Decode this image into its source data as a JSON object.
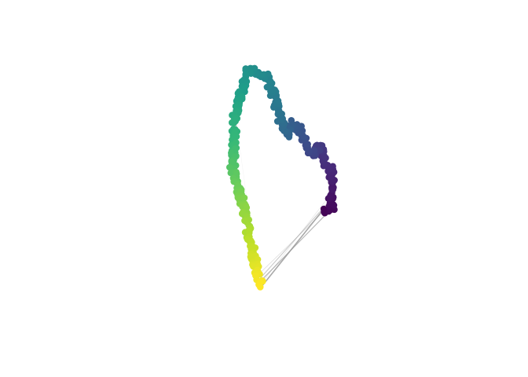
{
  "chart_data": {
    "type": "scatter",
    "title": "",
    "xlabel": "",
    "ylabel": "",
    "axes_visible": false,
    "grid": false,
    "legend": "none",
    "colormap": "viridis",
    "colormap_stops": [
      "#440154",
      "#482878",
      "#3e4989",
      "#31688e",
      "#26828e",
      "#1f9e89",
      "#35b779",
      "#6ece58",
      "#b5de2b",
      "#fde725"
    ],
    "edge_color": "#999999",
    "xlim": [
      0,
      1
    ],
    "ylim": [
      0,
      1
    ],
    "path_waypoints": [
      {
        "x": 0.69,
        "y": 0.63
      },
      {
        "x": 0.73,
        "y": 0.622
      },
      {
        "x": 0.72,
        "y": 0.56
      },
      {
        "x": 0.735,
        "y": 0.525
      },
      {
        "x": 0.725,
        "y": 0.44
      },
      {
        "x": 0.7,
        "y": 0.415
      },
      {
        "x": 0.69,
        "y": 0.36
      },
      {
        "x": 0.67,
        "y": 0.34
      },
      {
        "x": 0.655,
        "y": 0.39
      },
      {
        "x": 0.615,
        "y": 0.33
      },
      {
        "x": 0.575,
        "y": 0.25
      },
      {
        "x": 0.55,
        "y": 0.24
      },
      {
        "x": 0.535,
        "y": 0.295
      },
      {
        "x": 0.505,
        "y": 0.215
      },
      {
        "x": 0.475,
        "y": 0.11
      },
      {
        "x": 0.45,
        "y": 0.035
      },
      {
        "x": 0.415,
        "y": 0.02
      },
      {
        "x": 0.395,
        "y": 0.01
      },
      {
        "x": 0.365,
        "y": 0.005
      },
      {
        "x": 0.345,
        "y": 0.07
      },
      {
        "x": 0.33,
        "y": 0.13
      },
      {
        "x": 0.315,
        "y": 0.175
      },
      {
        "x": 0.31,
        "y": 0.22
      },
      {
        "x": 0.305,
        "y": 0.34
      },
      {
        "x": 0.3,
        "y": 0.45
      },
      {
        "x": 0.305,
        "y": 0.49
      },
      {
        "x": 0.32,
        "y": 0.52
      },
      {
        "x": 0.33,
        "y": 0.56
      },
      {
        "x": 0.345,
        "y": 0.61
      },
      {
        "x": 0.355,
        "y": 0.67
      },
      {
        "x": 0.368,
        "y": 0.73
      },
      {
        "x": 0.385,
        "y": 0.8
      },
      {
        "x": 0.395,
        "y": 0.85
      },
      {
        "x": 0.41,
        "y": 0.93
      },
      {
        "x": 0.43,
        "y": 0.965
      }
    ],
    "n_points": 400,
    "shortcut_edges": [
      {
        "from": 0.0,
        "to": 1.0,
        "width": 1.6,
        "opacity": 0.85
      },
      {
        "from": 0.02,
        "to": 0.99,
        "width": 1.2,
        "opacity": 0.7
      },
      {
        "from": 0.04,
        "to": 0.985,
        "width": 1.0,
        "opacity": 0.55
      },
      {
        "from": 0.03,
        "to": 0.975,
        "width": 0.8,
        "opacity": 0.35
      },
      {
        "from": 0.05,
        "to": 0.995,
        "width": 0.7,
        "opacity": 0.25
      },
      {
        "from": 0.58,
        "to": 0.7,
        "width": 1.0,
        "opacity": 0.6
      },
      {
        "from": 0.6,
        "to": 0.72,
        "width": 0.9,
        "opacity": 0.5
      },
      {
        "from": 0.56,
        "to": 0.66,
        "width": 0.8,
        "opacity": 0.5
      },
      {
        "from": 0.62,
        "to": 0.74,
        "width": 0.7,
        "opacity": 0.4
      },
      {
        "from": 0.61,
        "to": 0.96,
        "width": 0.5,
        "opacity": 0.12
      }
    ]
  }
}
